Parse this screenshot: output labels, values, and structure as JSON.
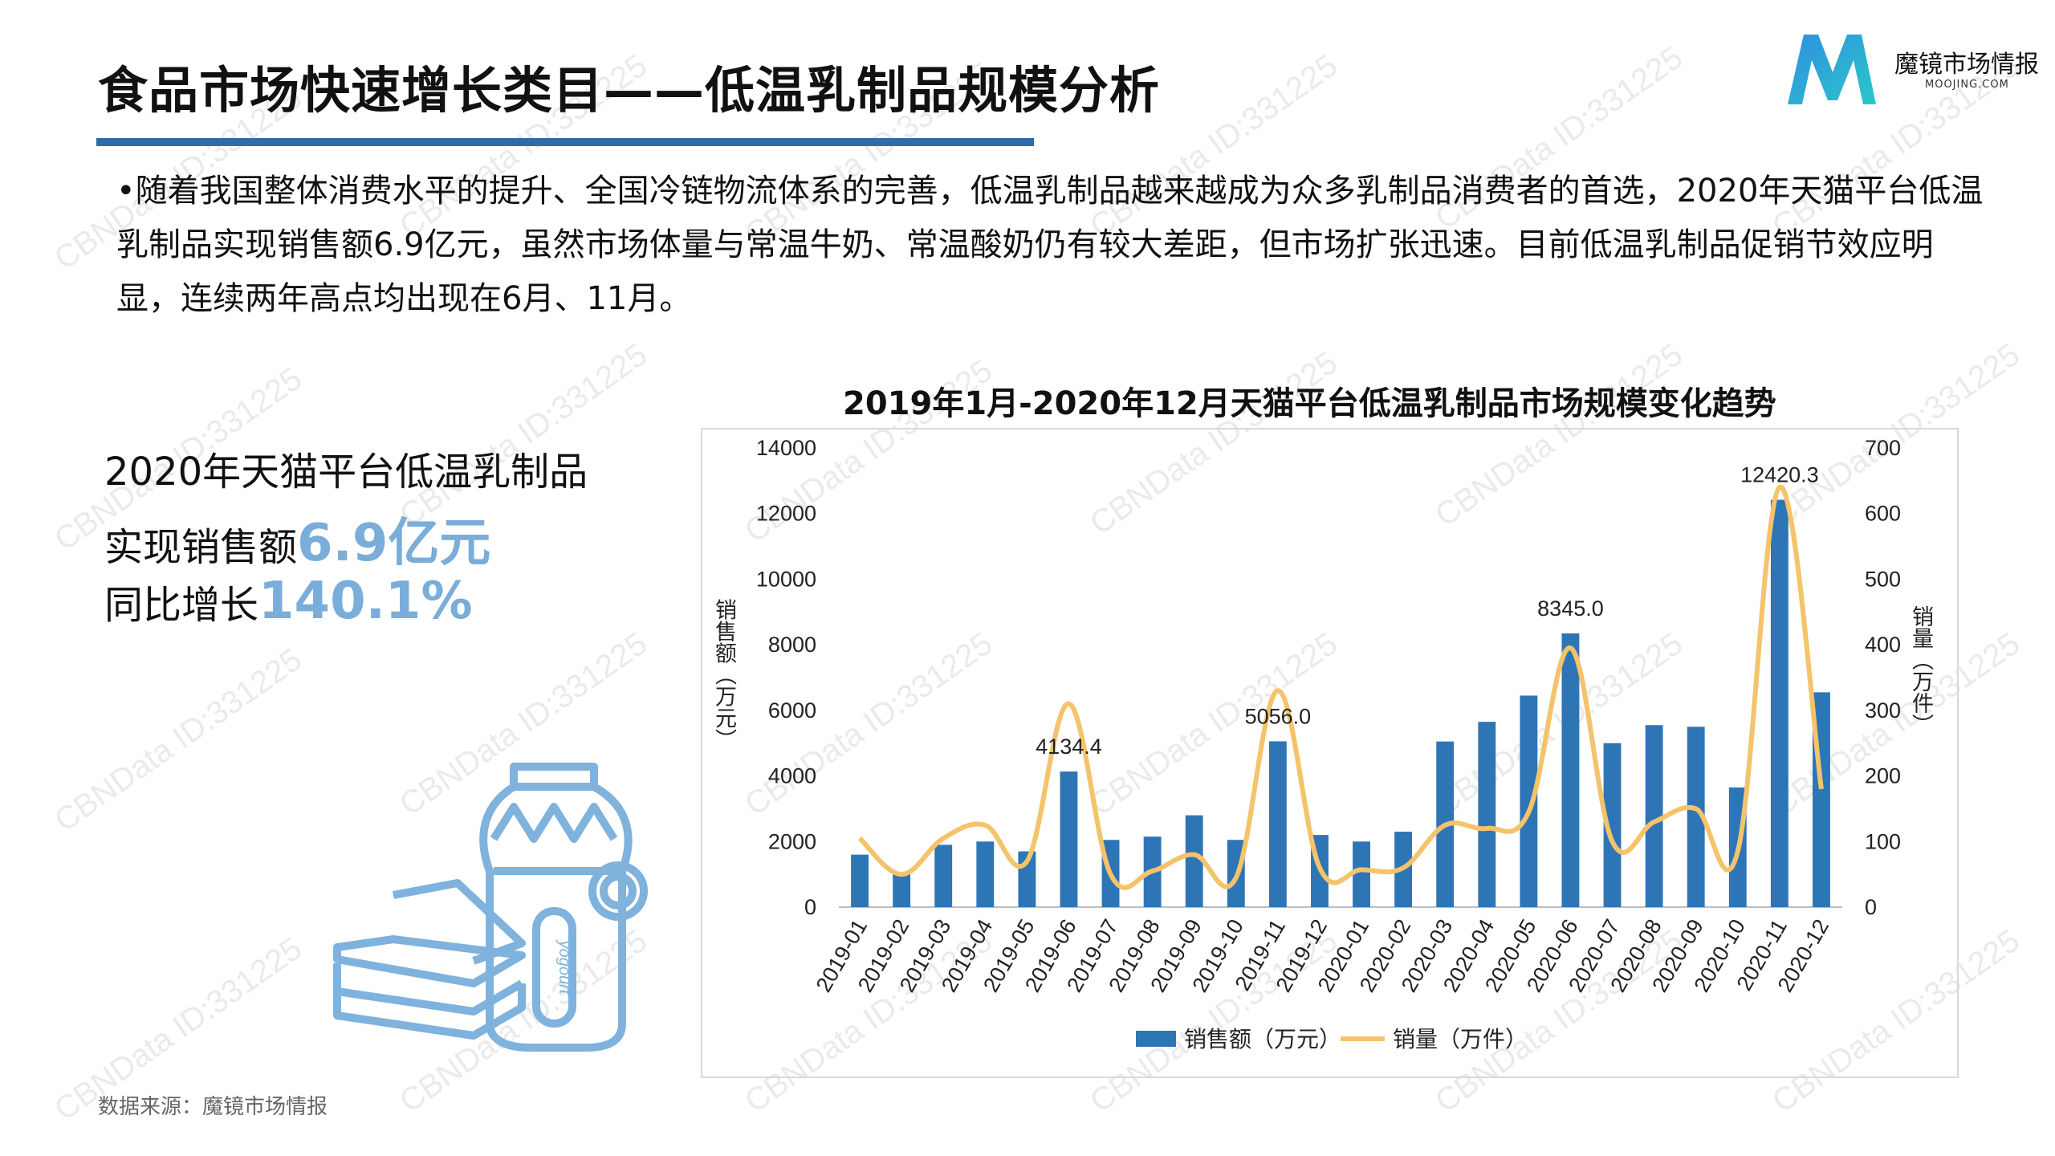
{
  "page": {
    "title": "食品市场快速增长类目——低温乳制品规模分析",
    "logo_name": "魔镜市场情报",
    "logo_domain": "MOOJING.COM",
    "intro": "•随着我国整体消费水平的提升、全国冷链物流体系的完善，低温乳制品越来越成为众多乳制品消费者的首选，2020年天猫平台低温乳制品实现销售额6.9亿元，虽然市场体量与常温牛奶、常温酸奶仍有较大差距，但市场扩张迅速。目前低温乳制品促销节效应明显，连续两年高点均出现在6月、11月。",
    "kpi_line1": "2020年天猫平台低温乳制品",
    "kpi_line2_label": "实现销售额",
    "kpi_line2_value": "6.9亿元",
    "kpi_line3_label": "同比增长",
    "kpi_line3_value": "140.1%",
    "source": "数据来源：魔镜市场情报",
    "watermark": "CBNData ID:331225",
    "bottle_label": "yogourt",
    "colors": {
      "title_bar": "#2e6ea8",
      "bar": "#2e75b6",
      "line": "#f4c36a",
      "kpi": "#7aadd9"
    }
  },
  "chart_data": {
    "type": "bar",
    "title": "2019年1月-2020年12月天猫平台低温乳制品市场规模变化趋势",
    "ylabel": "销售额（万元）",
    "y2label": "销量（万件）",
    "ylim": [
      0,
      14000
    ],
    "y2lim": [
      0,
      700
    ],
    "yticks": [
      "0",
      "2000",
      "4000",
      "6000",
      "8000",
      "10000",
      "12000",
      "14000"
    ],
    "y2ticks": [
      "0",
      "100",
      "200",
      "300",
      "400",
      "500",
      "600",
      "700"
    ],
    "legend_position": "bottom",
    "grid": false,
    "categories": [
      "2019-01",
      "2019-02",
      "2019-03",
      "2019-04",
      "2019-05",
      "2019-06",
      "2019-07",
      "2019-08",
      "2019-09",
      "2019-10",
      "2019-11",
      "2019-12",
      "2020-01",
      "2020-02",
      "2020-03",
      "2020-04",
      "2020-05",
      "2020-06",
      "2020-07",
      "2020-08",
      "2020-09",
      "2020-10",
      "2020-11",
      "2020-12"
    ],
    "series": [
      {
        "name": "销售额（万元）",
        "type": "bar",
        "axis": "left",
        "values": [
          1600,
          1000,
          1900,
          2000,
          1700,
          4134.4,
          2050,
          2150,
          2800,
          2050,
          5056.0,
          2200,
          2000,
          2300,
          5050,
          5650,
          6450,
          8345.0,
          5000,
          5550,
          5500,
          3650,
          12420.3,
          6550
        ]
      },
      {
        "name": "销量（万件）",
        "type": "line",
        "axis": "right",
        "values": [
          105,
          50,
          105,
          125,
          70,
          310,
          50,
          55,
          80,
          45,
          330,
          60,
          57,
          60,
          125,
          120,
          145,
          395,
          100,
          130,
          150,
          85,
          640,
          180
        ]
      }
    ],
    "data_labels": [
      {
        "category": "2019-06",
        "text": "4134.4"
      },
      {
        "category": "2019-11",
        "text": "5056.0"
      },
      {
        "category": "2020-06",
        "text": "8345.0"
      },
      {
        "category": "2020-11",
        "text": "12420.3"
      }
    ]
  }
}
